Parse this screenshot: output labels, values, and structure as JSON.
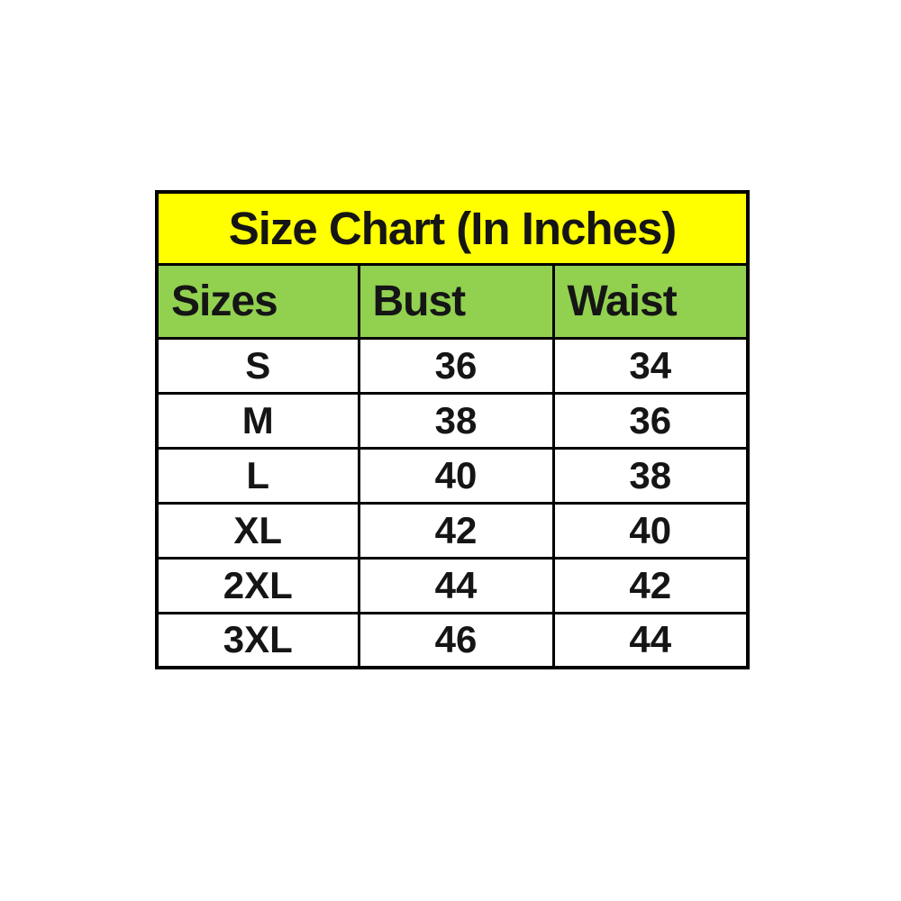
{
  "page": {
    "background": "#ffffff"
  },
  "style": {
    "title_bg": "#ffff00",
    "header_bg": "#92d050",
    "border": "#000000",
    "text": "#151515"
  },
  "chart_data": {
    "type": "table",
    "title": "Size Chart (In Inches)",
    "columns": [
      "Sizes",
      "Bust",
      "Waist"
    ],
    "rows": [
      [
        "S",
        "36",
        "34"
      ],
      [
        "M",
        "38",
        "36"
      ],
      [
        "L",
        "40",
        "38"
      ],
      [
        "XL",
        "42",
        "40"
      ],
      [
        "2XL",
        "44",
        "42"
      ],
      [
        "3XL",
        "46",
        "44"
      ]
    ],
    "units": "inches",
    "layout_hints": {
      "title_row_bg": "#ffff00",
      "header_row_bg": "#92d050",
      "body_row_bg": "#ffffff",
      "grid": "on",
      "title_align": "center",
      "header_align": "left",
      "body_align": "center"
    }
  }
}
